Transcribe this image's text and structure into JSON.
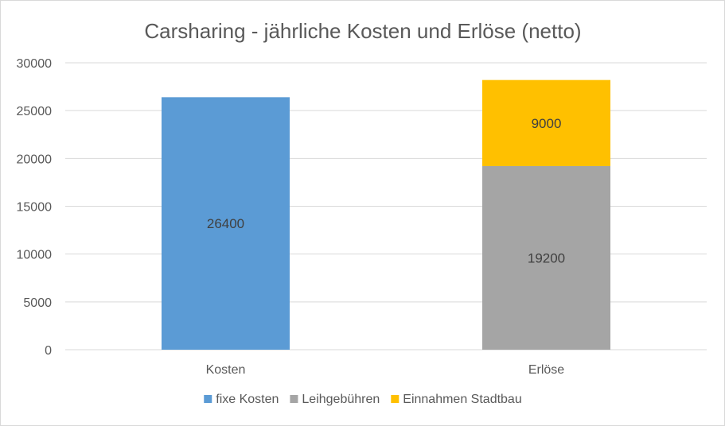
{
  "chart_data": {
    "type": "bar",
    "stacked": true,
    "title": "Carsharing - jährliche Kosten und Erlöse (netto)",
    "categories": [
      "Kosten",
      "Erlöse"
    ],
    "series": [
      {
        "name": "fixe Kosten",
        "color": "#5b9bd5",
        "values": [
          26400,
          null
        ]
      },
      {
        "name": "Leihgebühren",
        "color": "#a5a5a5",
        "values": [
          null,
          19200
        ]
      },
      {
        "name": "Einnahmen Stadtbau",
        "color": "#ffc000",
        "values": [
          null,
          9000
        ]
      }
    ],
    "ylim": [
      0,
      30000
    ],
    "yticks": [
      0,
      5000,
      10000,
      15000,
      20000,
      25000,
      30000
    ],
    "grid": true,
    "data_labels": true,
    "legend_position": "bottom"
  }
}
